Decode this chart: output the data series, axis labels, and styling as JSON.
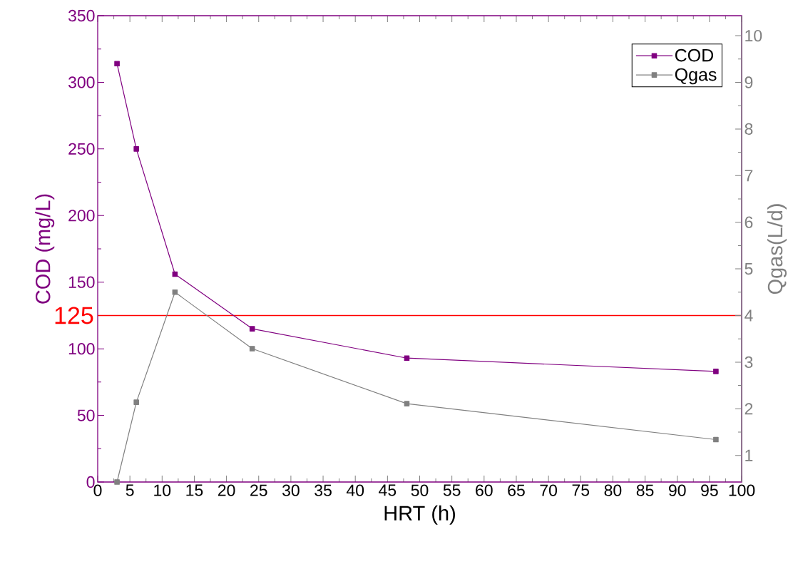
{
  "chart_data": {
    "type": "line",
    "xlabel": "HRT (h)",
    "ylabel": "COD (mg/L)",
    "y2label": "Qgas(L/d)",
    "x": [
      3,
      6,
      12,
      24,
      48,
      96
    ],
    "xlim": [
      0,
      100
    ],
    "xticks": [
      0,
      5,
      10,
      15,
      20,
      25,
      30,
      35,
      40,
      45,
      50,
      55,
      60,
      65,
      70,
      75,
      80,
      85,
      90,
      95,
      100
    ],
    "ylim": [
      0,
      350
    ],
    "yticks": [
      0,
      50,
      100,
      150,
      200,
      250,
      300,
      350
    ],
    "y2lim": [
      0.43,
      10.43
    ],
    "y2ticks": [
      1,
      2,
      3,
      4,
      5,
      6,
      7,
      8,
      9,
      10
    ],
    "series": [
      {
        "name": "COD",
        "color": "#800080",
        "values": [
          314,
          250,
          156,
          115,
          93,
          83
        ]
      },
      {
        "name": "Qgas",
        "color": "#808080",
        "axis": "y2",
        "values": [
          0.43,
          2.14,
          4.5,
          3.29,
          2.11,
          1.34
        ]
      }
    ],
    "ref_lines": [
      {
        "axis": "y",
        "value": 125,
        "label": "125",
        "color": "#ff0000"
      }
    ],
    "legend": "top right",
    "marker": "square",
    "line_style": "solid"
  }
}
